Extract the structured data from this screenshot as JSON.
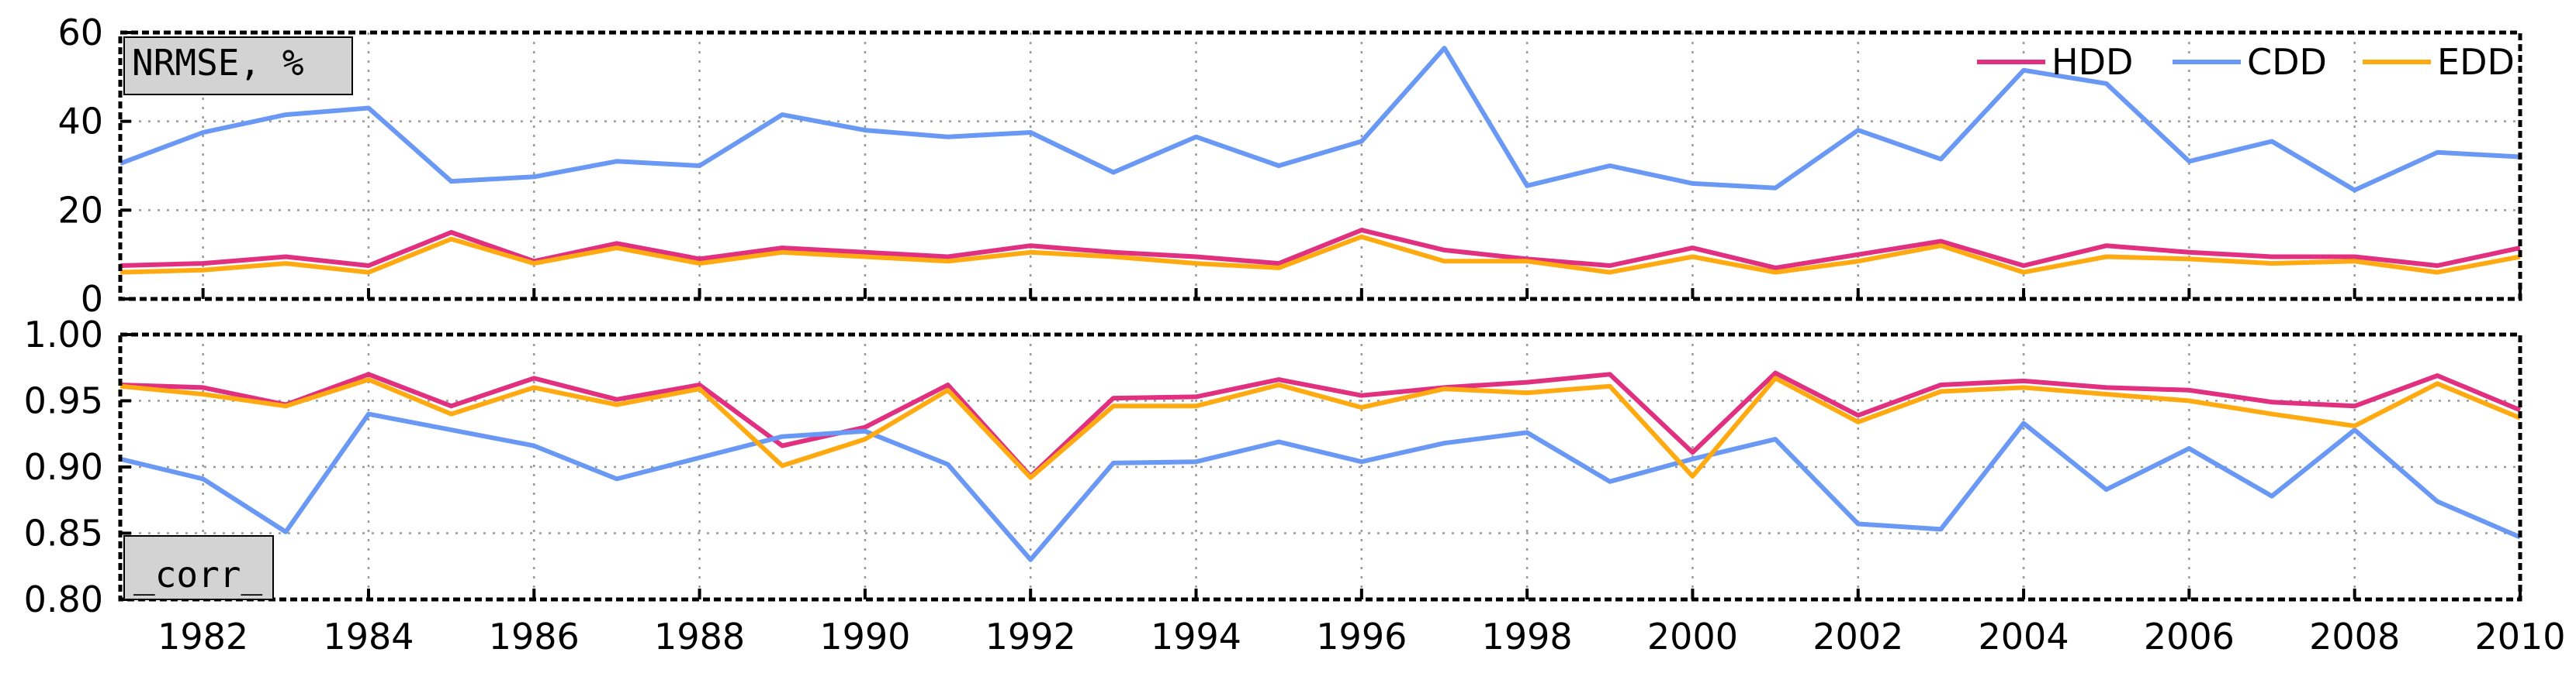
{
  "chart_data": [
    {
      "type": "line",
      "tag": "NRMSE, %",
      "x": [
        1981,
        1982,
        1983,
        1984,
        1985,
        1986,
        1987,
        1988,
        1989,
        1990,
        1991,
        1992,
        1993,
        1994,
        1995,
        1996,
        1997,
        1998,
        1999,
        2000,
        2001,
        2002,
        2003,
        2004,
        2005,
        2006,
        2007,
        2008,
        2009,
        2010
      ],
      "xlim": [
        1981,
        2010
      ],
      "ylim": [
        0,
        60
      ],
      "yticks": [
        0,
        20,
        40,
        60
      ],
      "ytick_labels": [
        "0",
        "20",
        "40",
        "60"
      ],
      "grid": true,
      "legend_position": "top-right",
      "series": [
        {
          "name": "HDD",
          "color": "#e0307f",
          "values": [
            7.5,
            8.0,
            9.5,
            7.5,
            15.0,
            8.5,
            12.5,
            9.0,
            11.5,
            10.5,
            9.5,
            12.0,
            10.5,
            9.5,
            8.0,
            15.5,
            11.0,
            9.0,
            7.5,
            11.5,
            7.0,
            10.0,
            13.0,
            7.5,
            12.0,
            10.5,
            9.5,
            9.5,
            7.5,
            11.5
          ]
        },
        {
          "name": "CDD",
          "color": "#6a98f5",
          "values": [
            30.5,
            37.5,
            41.5,
            43.0,
            26.5,
            27.5,
            31.0,
            30.0,
            41.5,
            38.0,
            36.5,
            37.5,
            28.5,
            36.5,
            30.0,
            35.5,
            56.5,
            25.5,
            30.0,
            26.0,
            25.0,
            38.0,
            31.5,
            51.5,
            48.5,
            31.0,
            35.5,
            24.5,
            33.0,
            32.0
          ]
        },
        {
          "name": "EDD",
          "color": "#ffaa10",
          "values": [
            6.0,
            6.5,
            8.0,
            6.0,
            13.5,
            8.0,
            11.5,
            8.0,
            10.5,
            9.5,
            8.5,
            10.5,
            9.5,
            8.0,
            7.0,
            14.0,
            8.5,
            8.5,
            6.0,
            9.5,
            6.0,
            8.5,
            12.0,
            6.0,
            9.5,
            9.0,
            8.0,
            8.5,
            6.0,
            9.5
          ]
        }
      ]
    },
    {
      "type": "line",
      "tag": "_corr_",
      "x": [
        1981,
        1982,
        1983,
        1984,
        1985,
        1986,
        1987,
        1988,
        1989,
        1990,
        1991,
        1992,
        1993,
        1994,
        1995,
        1996,
        1997,
        1998,
        1999,
        2000,
        2001,
        2002,
        2003,
        2004,
        2005,
        2006,
        2007,
        2008,
        2009,
        2010
      ],
      "xlim": [
        1981,
        2010
      ],
      "ylim": [
        0.8,
        1.0
      ],
      "yticks": [
        0.8,
        0.85,
        0.9,
        0.95,
        1.0
      ],
      "ytick_labels": [
        "0.80",
        "0.85",
        "0.90",
        "0.95",
        "1.00"
      ],
      "xticks": [
        1982,
        1984,
        1986,
        1988,
        1990,
        1992,
        1994,
        1996,
        1998,
        2000,
        2002,
        2004,
        2006,
        2008,
        2010
      ],
      "xtick_labels": [
        "1982",
        "1984",
        "1986",
        "1988",
        "1990",
        "1992",
        "1994",
        "1996",
        "1998",
        "2000",
        "2002",
        "2004",
        "2006",
        "2008",
        "2010"
      ],
      "grid": true,
      "series": [
        {
          "name": "HDD",
          "color": "#e0307f",
          "values": [
            0.962,
            0.96,
            0.947,
            0.97,
            0.946,
            0.967,
            0.951,
            0.962,
            0.916,
            0.93,
            0.962,
            0.893,
            0.952,
            0.953,
            0.966,
            0.954,
            0.96,
            0.964,
            0.97,
            0.911,
            0.971,
            0.939,
            0.962,
            0.965,
            0.96,
            0.958,
            0.949,
            0.946,
            0.969,
            0.943
          ]
        },
        {
          "name": "CDD",
          "color": "#6a98f5",
          "values": [
            0.906,
            0.891,
            0.851,
            0.94,
            0.928,
            0.916,
            0.891,
            0.907,
            0.923,
            0.927,
            0.902,
            0.83,
            0.903,
            0.904,
            0.919,
            0.904,
            0.918,
            0.926,
            0.889,
            0.906,
            0.921,
            0.857,
            0.853,
            0.933,
            0.883,
            0.914,
            0.878,
            0.928,
            0.874,
            0.847
          ]
        },
        {
          "name": "EDD",
          "color": "#ffaa10",
          "values": [
            0.961,
            0.955,
            0.946,
            0.966,
            0.94,
            0.96,
            0.947,
            0.959,
            0.901,
            0.921,
            0.958,
            0.892,
            0.946,
            0.946,
            0.962,
            0.945,
            0.959,
            0.956,
            0.961,
            0.893,
            0.967,
            0.934,
            0.957,
            0.96,
            0.955,
            0.95,
            0.94,
            0.931,
            0.963,
            0.937
          ]
        }
      ]
    }
  ]
}
